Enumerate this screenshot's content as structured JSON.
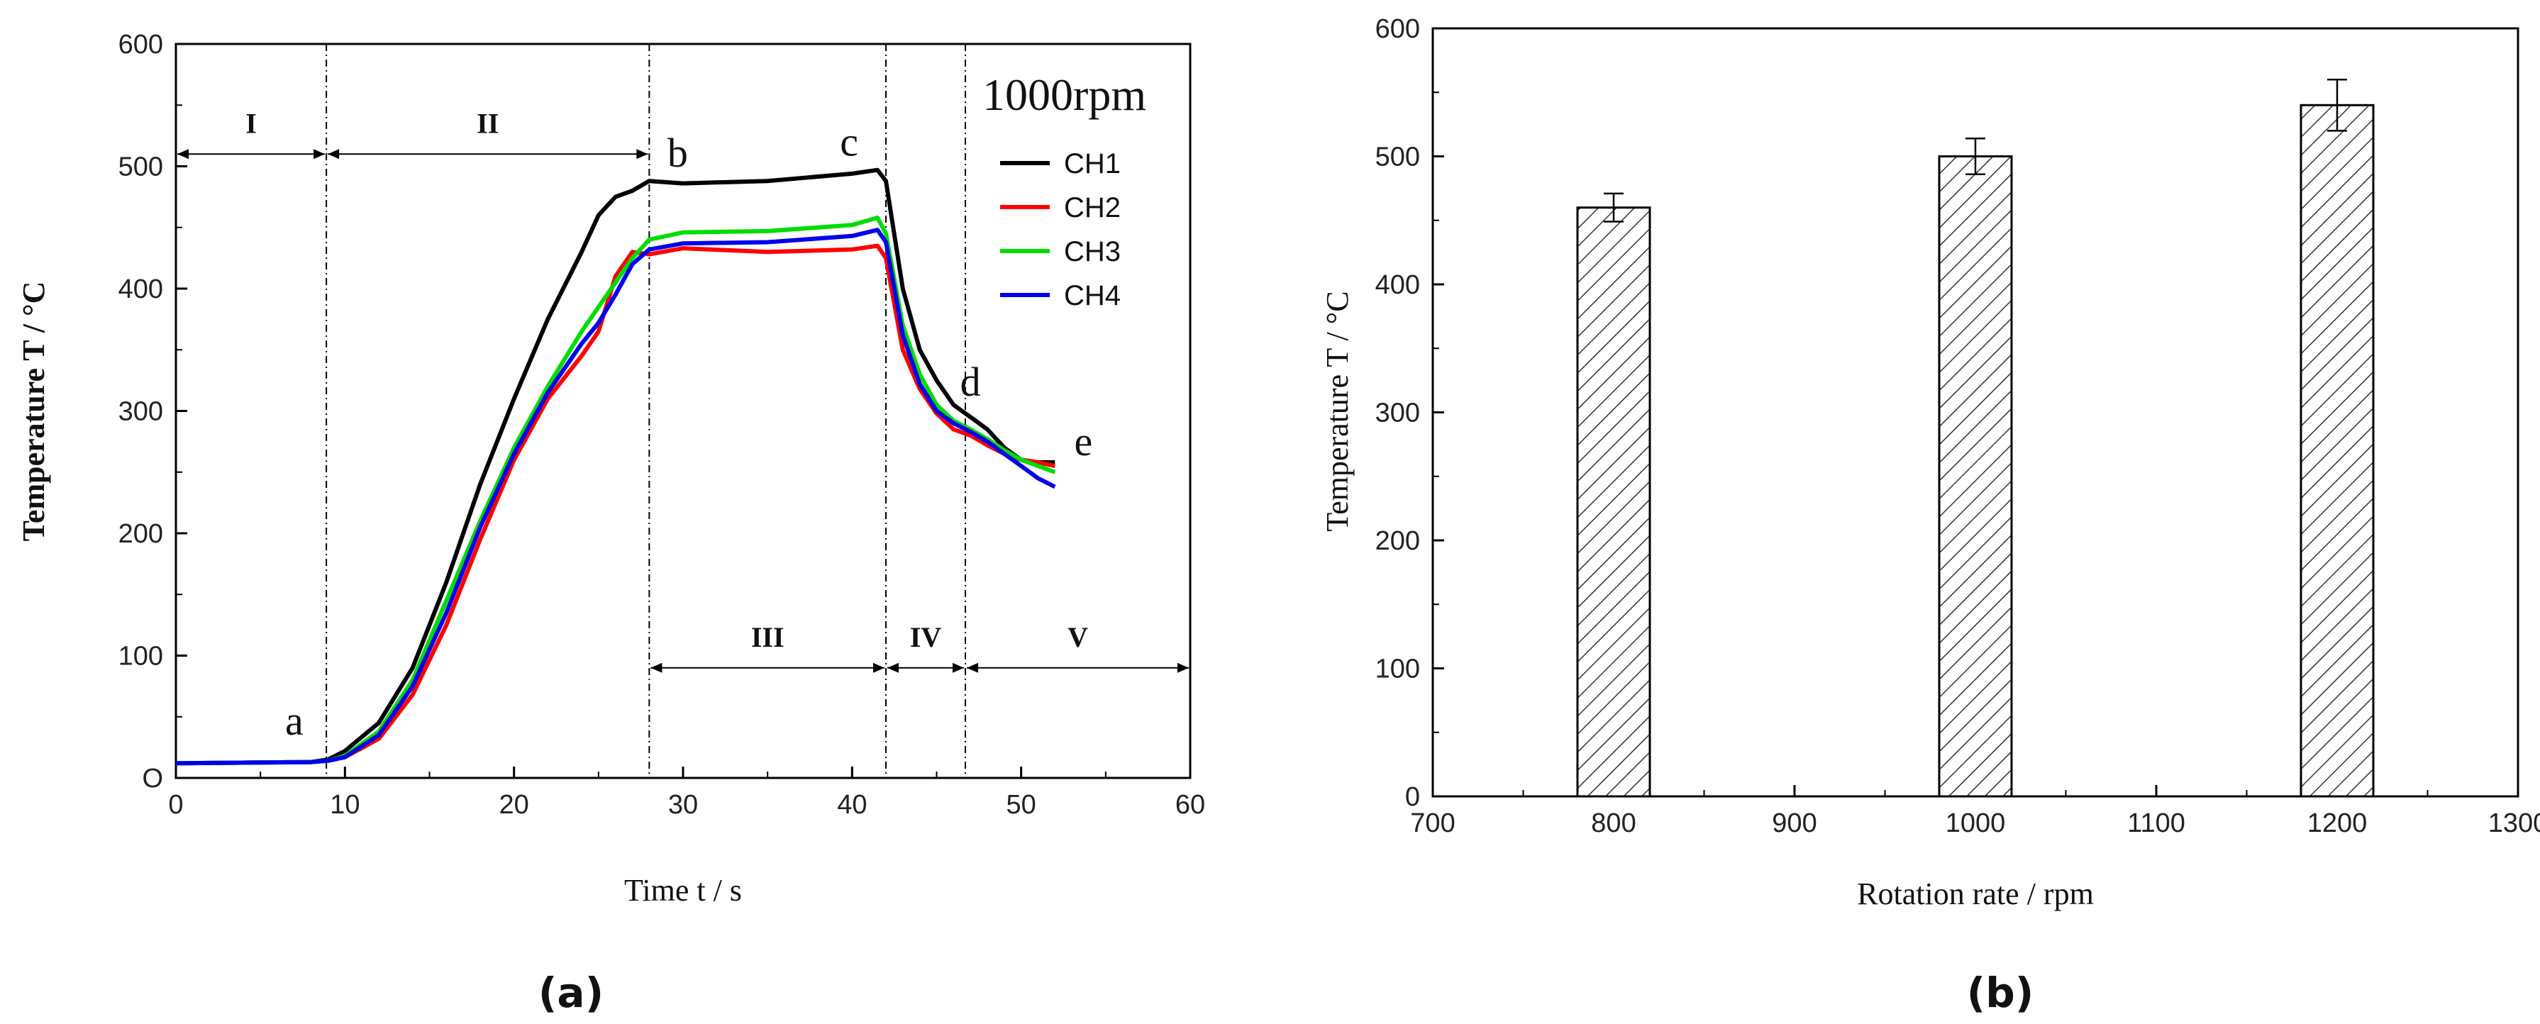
{
  "figure": {
    "panel_labels": [
      "(a)",
      "(b)"
    ]
  },
  "chart_data": [
    {
      "type": "line",
      "title": "",
      "xlabel": "Time t / s",
      "ylabel": "Temperature T / °C",
      "xlim": [
        0,
        60
      ],
      "ylim": [
        0,
        600
      ],
      "xticks": [
        0,
        10,
        20,
        30,
        40,
        50,
        60
      ],
      "yticks": [
        0,
        100,
        200,
        300,
        400,
        500,
        600
      ],
      "grid": false,
      "legend_title": "1000rpm",
      "legend_position": "top-right",
      "origin_label": "O",
      "series": [
        {
          "name": "CH1",
          "color": "#000000",
          "x": [
            0,
            8,
            9,
            10,
            12,
            14,
            16,
            18,
            20,
            22,
            24,
            25,
            26,
            27,
            28,
            30,
            35,
            40,
            41.5,
            42,
            43,
            44,
            45,
            46,
            47,
            48,
            49,
            50,
            51,
            52
          ],
          "y": [
            12,
            13,
            15,
            22,
            45,
            90,
            160,
            240,
            310,
            375,
            430,
            460,
            475,
            480,
            488,
            486,
            488,
            494,
            497,
            488,
            400,
            350,
            325,
            305,
            295,
            285,
            270,
            260,
            258,
            258
          ]
        },
        {
          "name": "CH2",
          "color": "#ff0000",
          "x": [
            0,
            8,
            9,
            10,
            12,
            14,
            16,
            18,
            20,
            22,
            24,
            25,
            26,
            27,
            28,
            30,
            35,
            40,
            41.5,
            42,
            43,
            44,
            45,
            46,
            47,
            48,
            49,
            50,
            51,
            52
          ],
          "y": [
            12,
            13,
            14,
            17,
            32,
            68,
            125,
            195,
            260,
            310,
            345,
            365,
            410,
            430,
            428,
            433,
            430,
            432,
            435,
            425,
            350,
            318,
            298,
            285,
            280,
            272,
            265,
            260,
            258,
            255
          ]
        },
        {
          "name": "CH3",
          "color": "#00dd00",
          "x": [
            0,
            8,
            9,
            10,
            12,
            14,
            16,
            18,
            20,
            22,
            24,
            25,
            26,
            27,
            28,
            30,
            35,
            40,
            41.5,
            42,
            43,
            44,
            45,
            46,
            47,
            48,
            49,
            50,
            51,
            52
          ],
          "y": [
            12,
            13,
            14,
            18,
            38,
            80,
            145,
            210,
            270,
            320,
            365,
            385,
            405,
            425,
            440,
            446,
            447,
            452,
            458,
            445,
            370,
            330,
            305,
            292,
            285,
            277,
            268,
            260,
            255,
            250
          ]
        },
        {
          "name": "CH4",
          "color": "#0000ee",
          "x": [
            0,
            8,
            9,
            10,
            12,
            14,
            16,
            18,
            20,
            22,
            24,
            25,
            26,
            27,
            28,
            30,
            35,
            40,
            41.5,
            42,
            43,
            44,
            45,
            46,
            47,
            48,
            49,
            50,
            51,
            52
          ],
          "y": [
            12,
            13,
            14,
            17,
            35,
            75,
            135,
            205,
            265,
            315,
            355,
            372,
            395,
            420,
            432,
            437,
            438,
            443,
            448,
            438,
            362,
            322,
            300,
            290,
            283,
            275,
            265,
            255,
            245,
            238
          ]
        }
      ],
      "point_labels": [
        {
          "text": "a",
          "x": 7,
          "y": 18
        },
        {
          "text": "b",
          "x": 28,
          "y": 488
        },
        {
          "text": "c",
          "x": 41.5,
          "y": 497
        },
        {
          "text": "d",
          "x": 47,
          "y": 295
        },
        {
          "text": "e",
          "x": 52,
          "y": 258
        }
      ],
      "stage_boundaries": [
        8.9,
        28,
        42,
        46.7
      ],
      "stages": [
        {
          "label": "I",
          "from": 0,
          "to": 8.9,
          "y": 510
        },
        {
          "label": "II",
          "from": 8.9,
          "to": 28,
          "y": 510
        },
        {
          "label": "III",
          "from": 28,
          "to": 42,
          "y": 90
        },
        {
          "label": "IV",
          "from": 42,
          "to": 46.7,
          "y": 90
        },
        {
          "label": "V",
          "from": 46.7,
          "to": 60,
          "y": 90
        }
      ]
    },
    {
      "type": "bar",
      "title": "",
      "xlabel": "Rotation rate / rpm",
      "ylabel": "Temperature T / °C",
      "xlim": [
        700,
        1300
      ],
      "ylim": [
        0,
        600
      ],
      "xticks": [
        700,
        800,
        900,
        1000,
        1100,
        1200,
        1300
      ],
      "yticks": [
        0,
        100,
        200,
        300,
        400,
        500,
        600
      ],
      "grid": false,
      "x": [
        800,
        1000,
        1200
      ],
      "values": [
        460,
        500,
        540
      ],
      "errors": [
        11,
        14,
        20
      ],
      "bar_fill": "hatched"
    }
  ]
}
